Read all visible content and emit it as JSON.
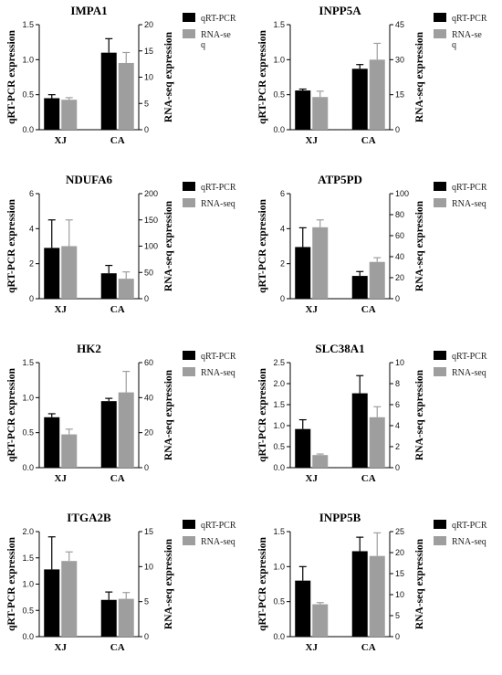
{
  "colors": {
    "qrt": "#000000",
    "rnaseq": "#9e9e9e",
    "axis": "#000000"
  },
  "chart_data": [
    {
      "type": "bar",
      "title": "IMPA1",
      "categories": [
        "XJ",
        "CA"
      ],
      "ylabel_left": "qRT-PCR expression",
      "ylabel_right": "RNA-seq expression",
      "ylim_left": [
        0,
        1.5
      ],
      "yticks_left": [
        "0.0",
        "0.5",
        "1.0",
        "1.5"
      ],
      "ylim_right": [
        0,
        20
      ],
      "yticks_right": [
        "0",
        "5",
        "10",
        "15",
        "20"
      ],
      "series": [
        {
          "name": "qRT-PCR",
          "axis": "left",
          "values": [
            0.45,
            1.1
          ],
          "errors": [
            0.05,
            0.2
          ]
        },
        {
          "name": "RNA-se q",
          "axis": "right",
          "values": [
            5.7,
            12.7
          ],
          "errors": [
            0.4,
            2.0
          ]
        }
      ],
      "legend": [
        "qRT-PCR",
        "RNA-se q"
      ]
    },
    {
      "type": "bar",
      "title": "INPP5A",
      "categories": [
        "XJ",
        "CA"
      ],
      "ylabel_left": "qRT-PCR expression",
      "ylabel_right": "RNA-seq expression",
      "ylim_left": [
        0,
        1.5
      ],
      "yticks_left": [
        "0.0",
        "0.5",
        "1.0",
        "1.5"
      ],
      "ylim_right": [
        0,
        45
      ],
      "yticks_right": [
        "0",
        "15",
        "30",
        "45"
      ],
      "series": [
        {
          "name": "qRT-PCR",
          "axis": "left",
          "values": [
            0.56,
            0.87
          ],
          "errors": [
            0.02,
            0.06
          ]
        },
        {
          "name": "RNA-se q",
          "axis": "right",
          "values": [
            14.0,
            30.0
          ],
          "errors": [
            2.5,
            7.0
          ]
        }
      ],
      "legend": [
        "qRT-PCR",
        "RNA-se q"
      ]
    },
    {
      "type": "bar",
      "title": "NDUFA6",
      "categories": [
        "XJ",
        "CA"
      ],
      "ylabel_left": "qRT-PCR expression",
      "ylabel_right": "RNA-seq expression",
      "ylim_left": [
        0,
        6
      ],
      "yticks_left": [
        "0",
        "2",
        "4",
        "6"
      ],
      "ylim_right": [
        0,
        200
      ],
      "yticks_right": [
        "0",
        "50",
        "100",
        "150",
        "200"
      ],
      "series": [
        {
          "name": "qRT-PCR",
          "axis": "left",
          "values": [
            2.9,
            1.45
          ],
          "errors": [
            1.6,
            0.45
          ]
        },
        {
          "name": "RNA-seq",
          "axis": "right",
          "values": [
            100,
            38
          ],
          "errors": [
            50,
            13
          ]
        }
      ],
      "legend": [
        "qRT-PCR",
        "RNA-seq"
      ]
    },
    {
      "type": "bar",
      "title": "ATP5PD",
      "categories": [
        "XJ",
        "CA"
      ],
      "ylabel_left": "qRT-PCR expression",
      "ylabel_right": "RNA-seq expression",
      "ylim_left": [
        0,
        6
      ],
      "yticks_left": [
        "0",
        "2",
        "4",
        "6"
      ],
      "ylim_right": [
        0,
        100
      ],
      "yticks_right": [
        "0",
        "20",
        "40",
        "60",
        "80",
        "100"
      ],
      "series": [
        {
          "name": "qRT-PCR",
          "axis": "left",
          "values": [
            2.95,
            1.3
          ],
          "errors": [
            1.1,
            0.25
          ]
        },
        {
          "name": "RNA-seq",
          "axis": "right",
          "values": [
            68,
            35
          ],
          "errors": [
            7,
            4
          ]
        }
      ],
      "legend": [
        "qRT-PCR",
        "RNA-seq"
      ]
    },
    {
      "type": "bar",
      "title": "HK2",
      "categories": [
        "XJ",
        "CA"
      ],
      "ylabel_left": "qRT-PCR expression",
      "ylabel_right": "RNA-seq expression",
      "ylim_left": [
        0,
        1.5
      ],
      "yticks_left": [
        "0.0",
        "0.5",
        "1.0",
        "1.5"
      ],
      "ylim_right": [
        0,
        60
      ],
      "yticks_right": [
        "0",
        "20",
        "40",
        "60"
      ],
      "series": [
        {
          "name": "qRT-PCR",
          "axis": "left",
          "values": [
            0.72,
            0.95
          ],
          "errors": [
            0.05,
            0.04
          ]
        },
        {
          "name": "RNA-seq",
          "axis": "right",
          "values": [
            19,
            43
          ],
          "errors": [
            3,
            12
          ]
        }
      ],
      "legend": [
        "qRT-PCR",
        "RNA-seq"
      ]
    },
    {
      "type": "bar",
      "title": "SLC38A1",
      "categories": [
        "XJ",
        "CA"
      ],
      "ylabel_left": "qRT-PCR expression",
      "ylabel_right": "RNA-seq expression",
      "ylim_left": [
        0,
        2.5
      ],
      "yticks_left": [
        "0.0",
        "0.5",
        "1.0",
        "1.5",
        "2.0",
        "2.5"
      ],
      "ylim_right": [
        0,
        10
      ],
      "yticks_right": [
        "0",
        "2",
        "4",
        "6",
        "8",
        "10"
      ],
      "series": [
        {
          "name": "qRT-PCR",
          "axis": "left",
          "values": [
            0.92,
            1.77
          ],
          "errors": [
            0.22,
            0.42
          ]
        },
        {
          "name": "RNA-seq",
          "axis": "right",
          "values": [
            1.2,
            4.8
          ],
          "errors": [
            0.1,
            1.0
          ]
        }
      ],
      "legend": [
        "qRT-PCR",
        "RNA-seq"
      ]
    },
    {
      "type": "bar",
      "title": "ITGA2B",
      "categories": [
        "XJ",
        "CA"
      ],
      "ylabel_left": "qRT-PCR expression",
      "ylabel_right": "RNA-seq expression",
      "ylim_left": [
        0,
        2.0
      ],
      "yticks_left": [
        "0.0",
        "0.5",
        "1.0",
        "1.5",
        "2.0"
      ],
      "ylim_right": [
        0,
        15
      ],
      "yticks_right": [
        "0",
        "5",
        "10",
        "15"
      ],
      "series": [
        {
          "name": "qRT-PCR",
          "axis": "left",
          "values": [
            1.28,
            0.7
          ],
          "errors": [
            0.62,
            0.15
          ]
        },
        {
          "name": "RNA-seq",
          "axis": "right",
          "values": [
            10.8,
            5.4
          ],
          "errors": [
            1.3,
            0.9
          ]
        }
      ],
      "legend": [
        "qRT-PCR",
        "RNA-seq"
      ]
    },
    {
      "type": "bar",
      "title": "INPP5B",
      "categories": [
        "XJ",
        "CA"
      ],
      "ylabel_left": "qRT-PCR expression",
      "ylabel_right": "RNA-seq expression",
      "ylim_left": [
        0,
        1.5
      ],
      "yticks_left": [
        "0.0",
        "0.5",
        "1.0",
        "1.5"
      ],
      "ylim_right": [
        0,
        25
      ],
      "yticks_right": [
        "0",
        "5",
        "10",
        "15",
        "20",
        "25"
      ],
      "series": [
        {
          "name": "qRT-PCR",
          "axis": "left",
          "values": [
            0.8,
            1.22
          ],
          "errors": [
            0.2,
            0.2
          ]
        },
        {
          "name": "RNA-seq",
          "axis": "right",
          "values": [
            7.7,
            19.2
          ],
          "errors": [
            0.4,
            5.5
          ]
        }
      ],
      "legend": [
        "qRT-PCR",
        "RNA-seq"
      ]
    }
  ]
}
